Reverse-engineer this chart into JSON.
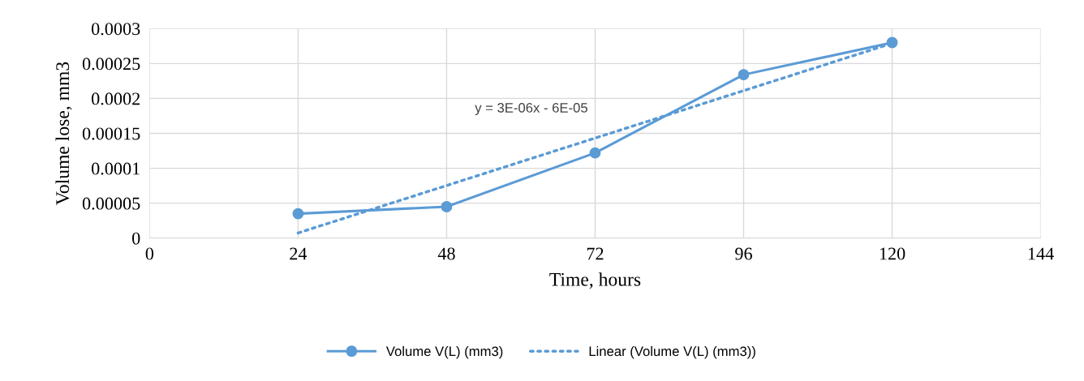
{
  "chart_data": {
    "type": "line",
    "xlabel": "Time, hours",
    "ylabel": "Volume lose, mm3",
    "xlim": [
      0,
      144
    ],
    "xticks": [
      0,
      24,
      48,
      72,
      96,
      120,
      144
    ],
    "ylim": [
      0,
      0.0003
    ],
    "yticks": [
      0,
      {
        "value": 5e-05,
        "label": "0.00005"
      },
      {
        "value": 0.0001,
        "label": "0.0001"
      },
      {
        "value": 0.00015,
        "label": "0.00015"
      },
      {
        "value": 0.0002,
        "label": "0.0002"
      },
      {
        "value": 0.00025,
        "label": "0.00025"
      },
      {
        "value": 0.0003,
        "label": "0.0003"
      }
    ],
    "grid": true,
    "legend": "bottom",
    "annotations": [
      "y = 3E-06x - 6E-05"
    ],
    "series": [
      {
        "name": "Volume V(L) (mm3)",
        "color": "#5b9bd5",
        "x": [
          24,
          48,
          72,
          96,
          120
        ],
        "values": [
          3.5e-05,
          4.5e-05,
          0.000122,
          0.000234,
          0.00028
        ],
        "marker": "circle",
        "line_style": "solid"
      },
      {
        "name": "Linear (Volume V(L) (mm3))",
        "color": "#5b9bd5",
        "x": [
          24,
          120
        ],
        "values": [
          7.4e-06,
          0.000279
        ],
        "marker": "none",
        "line_style": "dotted"
      }
    ]
  }
}
